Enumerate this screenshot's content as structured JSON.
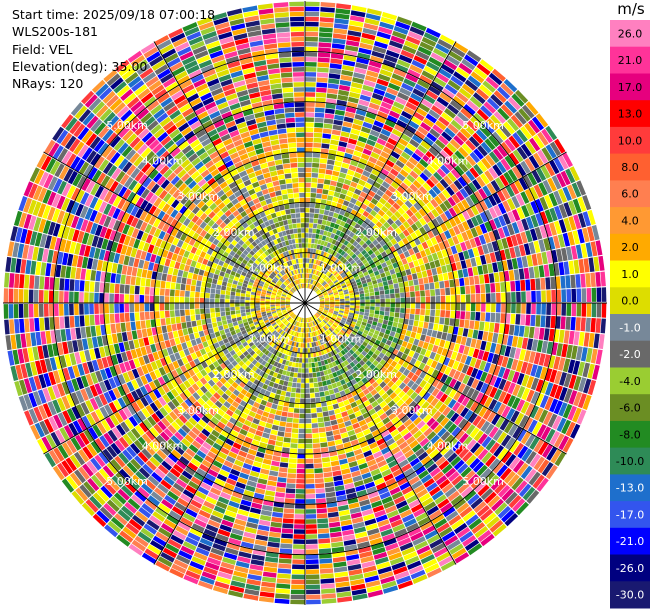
{
  "header": {
    "start_time": "Start time: 2025/09/18 07:00:18",
    "instrument": "WLS200s-181",
    "field": "Field: VEL",
    "elevation": "Elevation(deg): 35.00",
    "nrays": "NRays: 120"
  },
  "chart_data": {
    "type": "heatmap",
    "projection": "polar-ppi",
    "field": "VEL",
    "units": "m/s",
    "n_rays": 120,
    "max_range_km": 6.0,
    "range_rings_km": [
      1,
      2,
      3,
      4,
      5
    ],
    "ring_labels": [
      "1.00km",
      "2.00km",
      "3.00km",
      "4.00km",
      "5.00km"
    ],
    "spokes_deg": [
      0,
      30,
      60,
      90,
      120,
      150,
      180,
      210,
      240,
      270,
      300,
      330
    ],
    "colorbar": {
      "unit_label": "m/s",
      "ticks": [
        "26.0",
        "21.0",
        "17.0",
        "13.0",
        "10.0",
        "8.0",
        "6.0",
        "4.0",
        "2.0",
        "1.0",
        "0.0",
        "-1.0",
        "-2.0",
        "-4.0",
        "-6.0",
        "-8.0",
        "-10.0",
        "-13.0",
        "-17.0",
        "-21.0",
        "-26.0",
        "-30.0"
      ],
      "colors": [
        "#ff80c0",
        "#ff3399",
        "#e6007e",
        "#ff0000",
        "#ff3b3b",
        "#ff6030",
        "#ff7f50",
        "#ff9933",
        "#ffaa00",
        "#ffff00",
        "#dddd00",
        "#778899",
        "#696969",
        "#9acd32",
        "#6b8e23",
        "#228b22",
        "#2e8b57",
        "#1e6fcc",
        "#3355ee",
        "#0000ff",
        "#000080",
        "#191970"
      ]
    },
    "pattern": {
      "inner_km": "mostly 0 to 2 m/s (yellow/orange) with grey near-zero speckle",
      "mid_km": "near-zero (grey) and -2 to -6 m/s (green) rings",
      "outer_km": "noisy, full color range beyond ~3 km"
    }
  }
}
